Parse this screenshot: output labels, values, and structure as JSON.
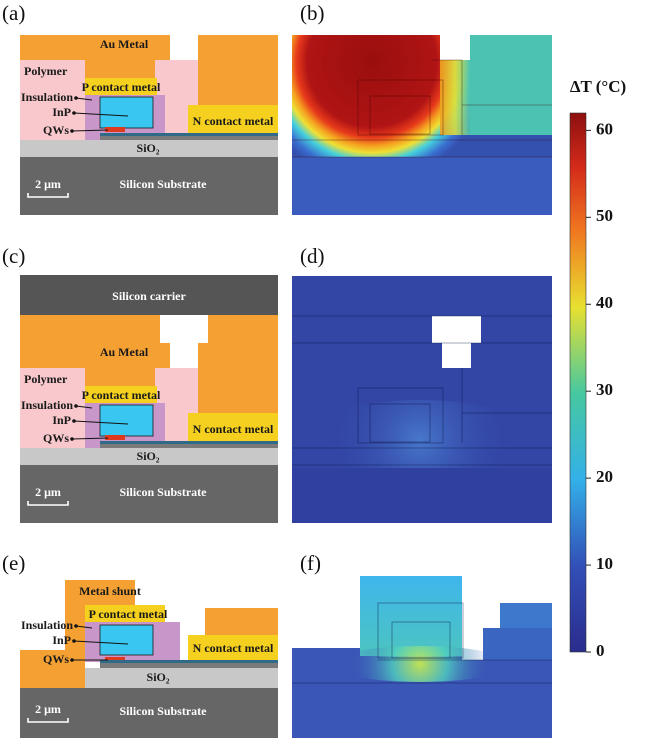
{
  "panel_a": {
    "tag": "(a)",
    "au_metal": "Au Metal",
    "polymer": "Polymer",
    "insulation": "Insulation",
    "inp": "InP",
    "qws": "QWs",
    "p_contact": "P contact metal",
    "n_contact": "N contact metal",
    "sio2": "SiO₂",
    "scale_bar": "2 μm",
    "substrate": "Silicon Substrate"
  },
  "panel_b": {
    "tag": "(b)"
  },
  "panel_c": {
    "tag": "(c)",
    "carrier": "Silicon carrier",
    "au_metal": "Au Metal",
    "polymer": "Polymer",
    "insulation": "Insulation",
    "inp": "InP",
    "qws": "QWs",
    "p_contact": "P contact metal",
    "n_contact": "N contact metal",
    "sio2": "SiO₂",
    "scale_bar": "2 μm",
    "substrate": "Silicon Substrate"
  },
  "panel_d": {
    "tag": "(d)"
  },
  "panel_e": {
    "tag": "(e)",
    "metal_shunt": "Metal shunt",
    "insulation": "Insulation",
    "inp": "InP",
    "qws": "QWs",
    "p_contact": "P contact metal",
    "n_contact": "N contact metal",
    "sio2": "SiO₂",
    "scale_bar": "2 μm",
    "substrate": "Silicon Substrate"
  },
  "panel_f": {
    "tag": "(f)"
  },
  "colorbar": {
    "label": "ΔT (°C)",
    "lim": [
      0,
      62
    ],
    "ticks": [
      0,
      10,
      20,
      30,
      40,
      50,
      60
    ]
  }
}
